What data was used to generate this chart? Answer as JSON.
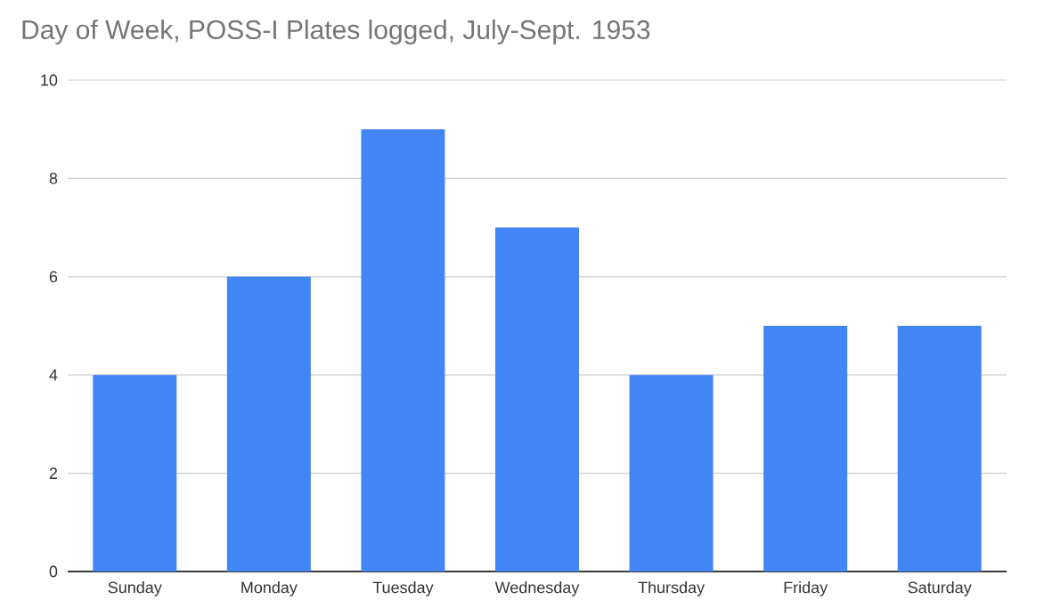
{
  "chart_data": {
    "type": "bar",
    "title": "Day of Week, POSS-I Plates logged, July-Sept. 1953",
    "categories": [
      "Sunday",
      "Monday",
      "Tuesday",
      "Wednesday",
      "Thursday",
      "Friday",
      "Saturday"
    ],
    "values": [
      4,
      6,
      9,
      7,
      4,
      5,
      5
    ],
    "color": "#4285f4",
    "ylim": [
      0,
      10
    ],
    "yticks": [
      0,
      2,
      4,
      6,
      8,
      10
    ],
    "grid": "y"
  }
}
